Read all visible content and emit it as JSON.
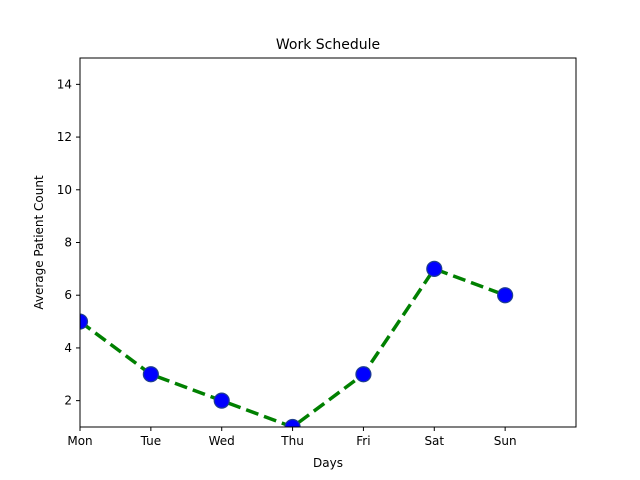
{
  "chart_data": {
    "type": "line",
    "title": "Work Schedule",
    "xlabel": "Days",
    "ylabel": "Average Patient Count",
    "categories": [
      "Mon",
      "Tue",
      "Wed",
      "Thu",
      "Fri",
      "Sat",
      "Sun"
    ],
    "series": [
      {
        "values": [
          5,
          3,
          2,
          1,
          3,
          7,
          6
        ]
      }
    ],
    "xlim": [
      0,
      7
    ],
    "ylim": [
      1,
      15
    ],
    "yticks": [
      2,
      4,
      6,
      8,
      10,
      12,
      14
    ],
    "grid": false,
    "legend": "none",
    "colors": {
      "line": "#008000",
      "marker_fill": "#0000ff",
      "marker_edge": "#1f3f8f"
    },
    "line_style": "dashed",
    "marker": "circle"
  }
}
